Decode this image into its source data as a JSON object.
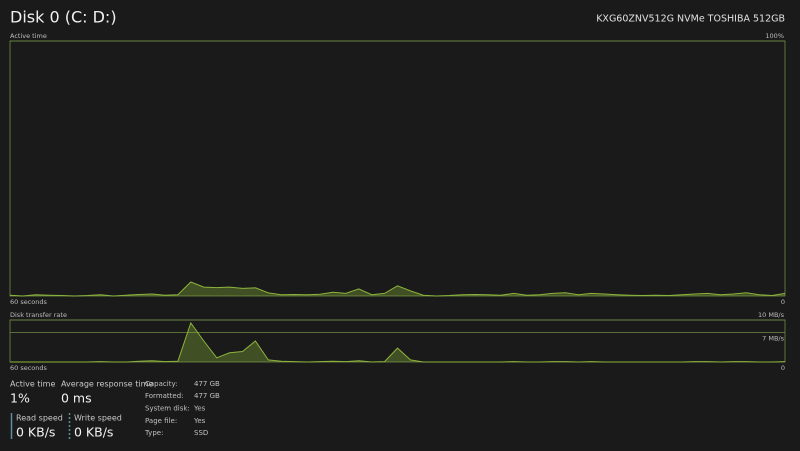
{
  "header": {
    "title": "Disk 0 (C: D:)",
    "model": "KXG60ZNV512G NVMe TOSHIBA 512GB"
  },
  "chart_data": [
    {
      "type": "area",
      "title": "Active time",
      "color": "#8cb43c",
      "x": [
        60,
        59,
        58,
        57,
        56,
        55,
        54,
        53,
        52,
        51,
        50,
        49,
        48,
        47,
        46,
        45,
        44,
        43,
        42,
        41,
        40,
        39,
        38,
        37,
        36,
        35,
        34,
        33,
        32,
        31,
        30,
        29,
        28,
        27,
        26,
        25,
        24,
        23,
        22,
        21,
        20,
        19,
        18,
        17,
        16,
        15,
        14,
        13,
        12,
        11,
        10,
        9,
        8,
        7,
        6,
        5,
        4,
        3,
        2,
        1,
        0
      ],
      "values": [
        0.3,
        0,
        0.5,
        0.3,
        0.2,
        0,
        0.2,
        0.5,
        0,
        0.3,
        0.6,
        0.8,
        0.3,
        0.5,
        5.5,
        3.5,
        3.3,
        3.5,
        3,
        3.2,
        1.2,
        0.5,
        0.6,
        0.5,
        0.7,
        1.5,
        1,
        2.8,
        0.5,
        1,
        4,
        2,
        0.3,
        0,
        0.2,
        0.5,
        0.6,
        0.5,
        0.3,
        1,
        0.3,
        0.5,
        1,
        1.3,
        0.5,
        1,
        0.8,
        0.5,
        0.3,
        0.2,
        0.3,
        0.2,
        0.5,
        0.8,
        1,
        0.5,
        0.8,
        1.3,
        0.5,
        0.2,
        1
      ],
      "xlim": [
        60,
        0
      ],
      "xticks": [
        {
          "value": 60,
          "label": "60 seconds"
        },
        0
      ],
      "ylim": [
        0,
        100
      ],
      "yticks": [
        {
          "value": 100,
          "label": "100%"
        }
      ]
    },
    {
      "type": "area",
      "title": "Disk transfer rate",
      "color": "#8cb43c",
      "x": [
        60,
        59,
        58,
        57,
        56,
        55,
        54,
        53,
        52,
        51,
        50,
        49,
        48,
        47,
        46,
        45,
        44,
        43,
        42,
        41,
        40,
        39,
        38,
        37,
        36,
        35,
        34,
        33,
        32,
        31,
        30,
        29,
        28,
        27,
        26,
        25,
        24,
        23,
        22,
        21,
        20,
        19,
        18,
        17,
        16,
        15,
        14,
        13,
        12,
        11,
        10,
        9,
        8,
        7,
        6,
        5,
        4,
        3,
        2,
        1,
        0
      ],
      "values": [
        0,
        0,
        0,
        0,
        0,
        0,
        0,
        0.1,
        0,
        0,
        0.2,
        0.3,
        0.1,
        0.2,
        9.3,
        5,
        1,
        2.2,
        2.5,
        5,
        0.5,
        0.2,
        0.1,
        0,
        0.1,
        0.2,
        0.1,
        0.3,
        0,
        0.1,
        3.3,
        0.5,
        0,
        0,
        0,
        0,
        0,
        0,
        0,
        0.1,
        0,
        0,
        0.1,
        0.1,
        0,
        0.1,
        0,
        0,
        0,
        0,
        0,
        0,
        0,
        0.1,
        0.1,
        0,
        0.1,
        0.1,
        0,
        0,
        0.1
      ],
      "xlim": [
        60,
        0
      ],
      "xticks": [
        {
          "value": 60,
          "label": "60 seconds"
        },
        0
      ],
      "ylim": [
        0,
        10
      ],
      "yticks": [
        {
          "value": 10,
          "label": "10 MB/s"
        },
        {
          "value": 7,
          "label": "7 MB/s"
        }
      ]
    }
  ],
  "stats": [
    {
      "label": "Active time",
      "value": "1%"
    },
    {
      "label": "Average response time",
      "value": "0 ms"
    },
    {
      "label": "Read speed",
      "value": "0 KB/s"
    },
    {
      "label": "Write speed",
      "value": "0 KB/s"
    }
  ],
  "properties": [
    {
      "label": "Capacity:",
      "value": "477 GB"
    },
    {
      "label": "Formatted:",
      "value": "477 GB"
    },
    {
      "label": "System disk:",
      "value": "Yes"
    },
    {
      "label": "Page file:",
      "value": "Yes"
    },
    {
      "label": "Type:",
      "value": "SSD"
    }
  ]
}
